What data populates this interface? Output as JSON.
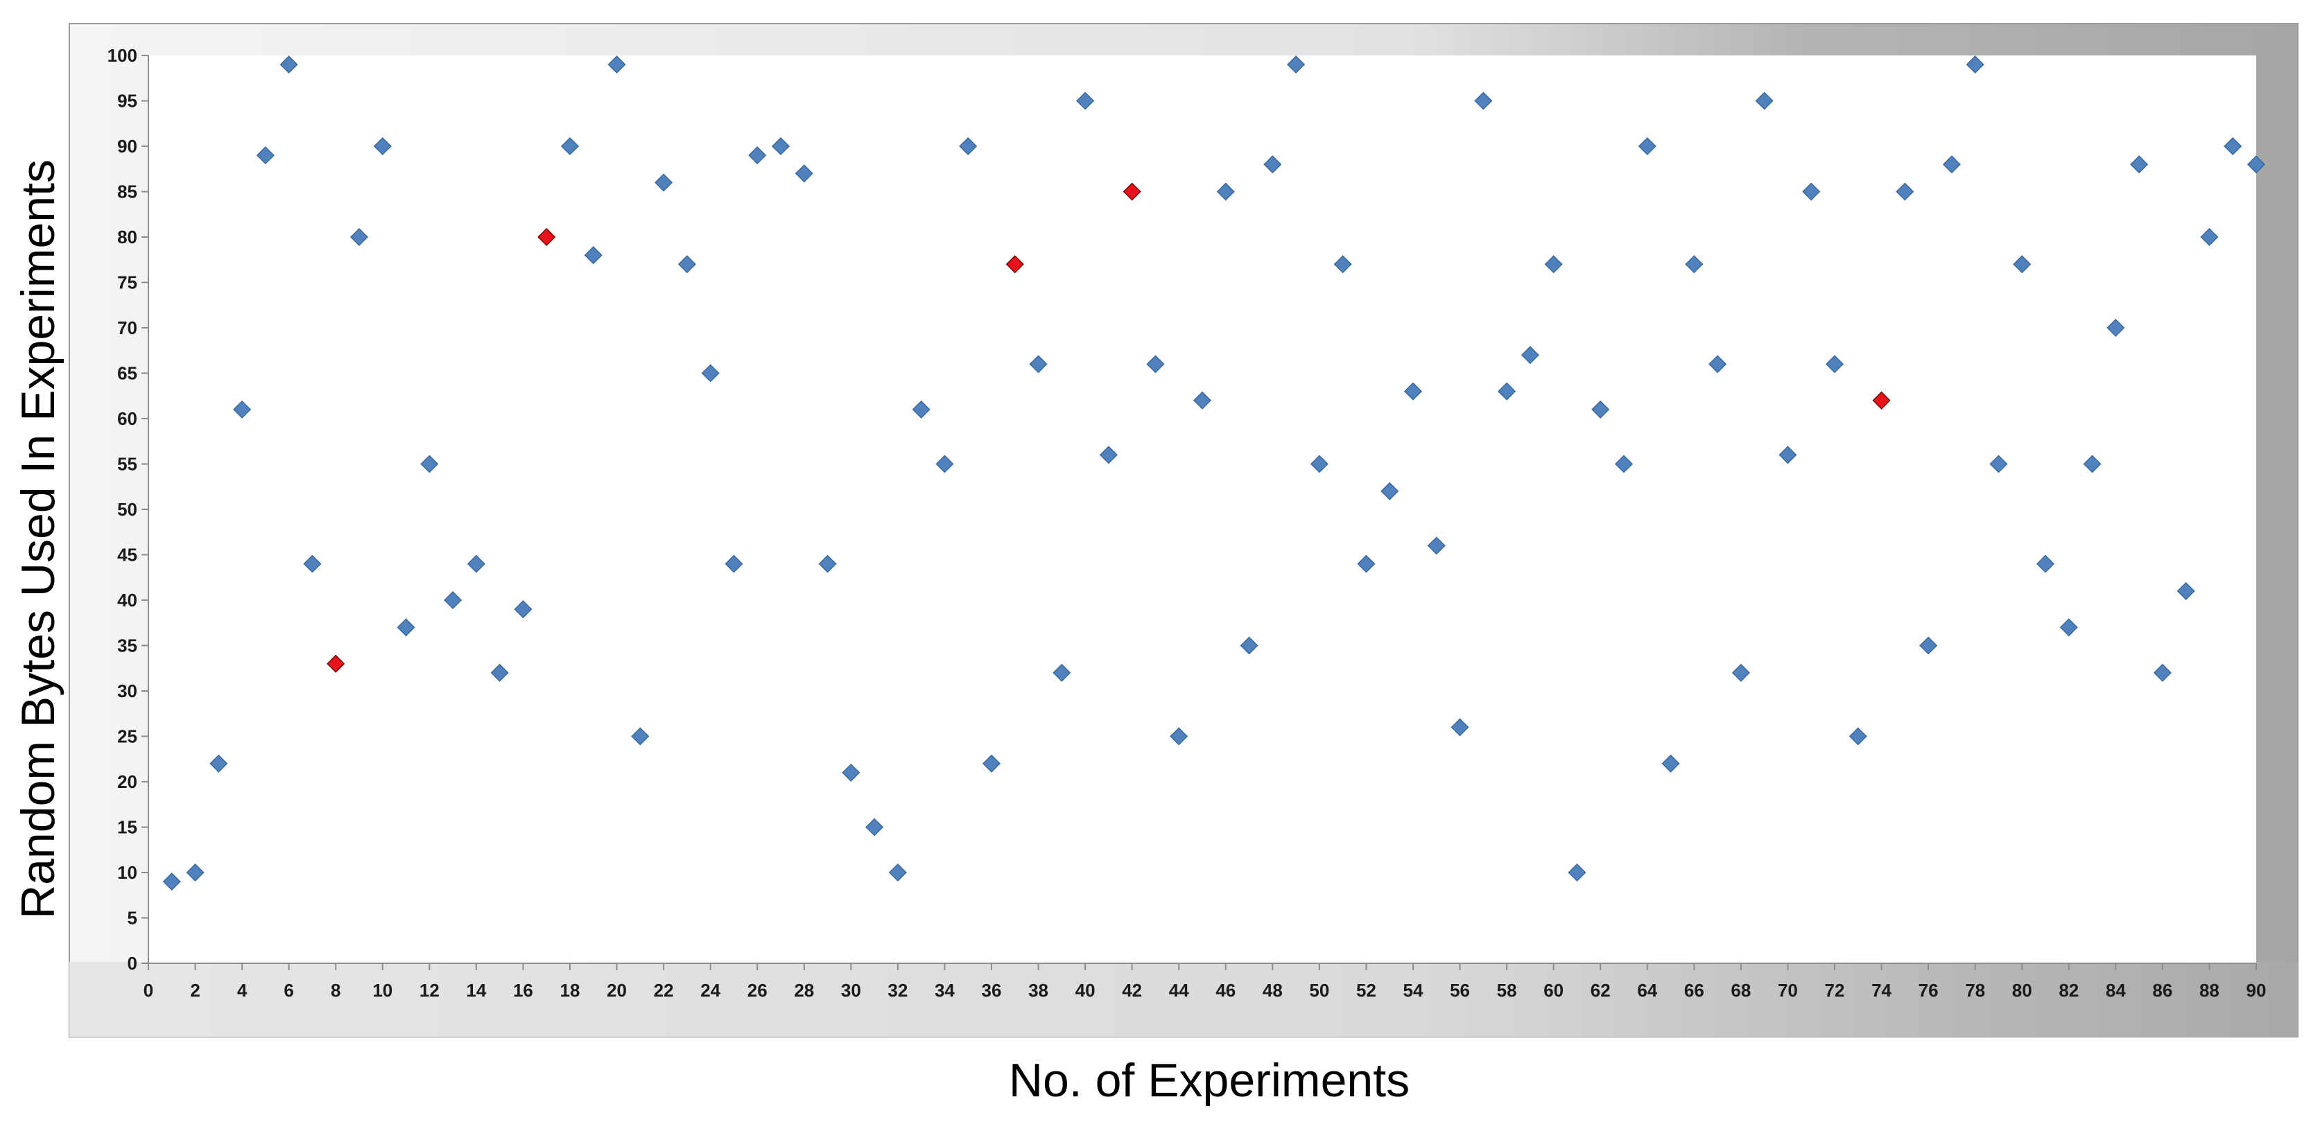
{
  "chart_data": {
    "type": "scatter",
    "xlabel": "No. of Experiments",
    "ylabel": "Random Bytes Used In Experiments",
    "xlim": [
      0,
      90
    ],
    "ylim": [
      0,
      100
    ],
    "x_ticks": [
      0,
      2,
      4,
      6,
      8,
      10,
      12,
      14,
      16,
      18,
      20,
      22,
      24,
      26,
      28,
      30,
      32,
      34,
      36,
      38,
      40,
      42,
      44,
      46,
      48,
      50,
      52,
      54,
      56,
      58,
      60,
      62,
      64,
      66,
      68,
      70,
      72,
      74,
      76,
      78,
      80,
      82,
      84,
      86,
      88,
      90
    ],
    "y_ticks": [
      0,
      5,
      10,
      15,
      20,
      25,
      30,
      35,
      40,
      45,
      50,
      55,
      60,
      65,
      70,
      75,
      80,
      85,
      90,
      95,
      100
    ],
    "grid": false,
    "legend": "none",
    "marker": "diamond",
    "colors": {
      "default": "#4f81bd",
      "highlight": "#e8141c"
    },
    "series": [
      {
        "color": "#4f81bd",
        "points": [
          [
            1,
            9
          ],
          [
            2,
            10
          ],
          [
            3,
            22
          ],
          [
            4,
            61
          ],
          [
            5,
            89
          ],
          [
            6,
            99
          ],
          [
            7,
            44
          ],
          [
            9,
            80
          ],
          [
            10,
            90
          ],
          [
            11,
            37
          ],
          [
            12,
            55
          ],
          [
            13,
            40
          ],
          [
            14,
            44
          ],
          [
            15,
            32
          ],
          [
            16,
            39
          ],
          [
            18,
            90
          ],
          [
            19,
            78
          ],
          [
            20,
            99
          ],
          [
            21,
            25
          ],
          [
            22,
            86
          ],
          [
            23,
            77
          ],
          [
            24,
            65
          ],
          [
            25,
            44
          ],
          [
            26,
            89
          ],
          [
            27,
            90
          ],
          [
            28,
            87
          ],
          [
            29,
            44
          ],
          [
            30,
            21
          ],
          [
            31,
            15
          ],
          [
            32,
            10
          ],
          [
            33,
            61
          ],
          [
            34,
            55
          ],
          [
            35,
            90
          ],
          [
            36,
            22
          ],
          [
            38,
            66
          ],
          [
            39,
            32
          ],
          [
            40,
            95
          ],
          [
            41,
            56
          ],
          [
            43,
            66
          ],
          [
            44,
            25
          ],
          [
            45,
            62
          ],
          [
            46,
            85
          ],
          [
            47,
            35
          ],
          [
            48,
            88
          ],
          [
            49,
            99
          ],
          [
            50,
            55
          ],
          [
            51,
            77
          ],
          [
            52,
            44
          ],
          [
            53,
            52
          ],
          [
            54,
            63
          ],
          [
            55,
            46
          ],
          [
            56,
            26
          ],
          [
            57,
            95
          ],
          [
            58,
            63
          ],
          [
            59,
            67
          ],
          [
            60,
            77
          ],
          [
            61,
            10
          ],
          [
            62,
            61
          ],
          [
            63,
            55
          ],
          [
            64,
            90
          ],
          [
            65,
            22
          ],
          [
            66,
            77
          ],
          [
            67,
            66
          ],
          [
            68,
            32
          ],
          [
            69,
            95
          ],
          [
            70,
            56
          ],
          [
            71,
            85
          ],
          [
            72,
            66
          ],
          [
            73,
            25
          ],
          [
            75,
            85
          ],
          [
            76,
            35
          ],
          [
            77,
            88
          ],
          [
            78,
            99
          ],
          [
            79,
            55
          ],
          [
            80,
            77
          ],
          [
            81,
            44
          ],
          [
            82,
            37
          ],
          [
            83,
            55
          ],
          [
            84,
            70
          ],
          [
            85,
            88
          ],
          [
            86,
            32
          ],
          [
            87,
            41
          ],
          [
            88,
            80
          ],
          [
            89,
            90
          ],
          [
            90,
            88
          ]
        ]
      },
      {
        "color": "#e8141c",
        "points": [
          [
            8,
            33
          ],
          [
            17,
            80
          ],
          [
            37,
            77
          ],
          [
            42,
            85
          ],
          [
            74,
            62
          ]
        ]
      }
    ]
  }
}
